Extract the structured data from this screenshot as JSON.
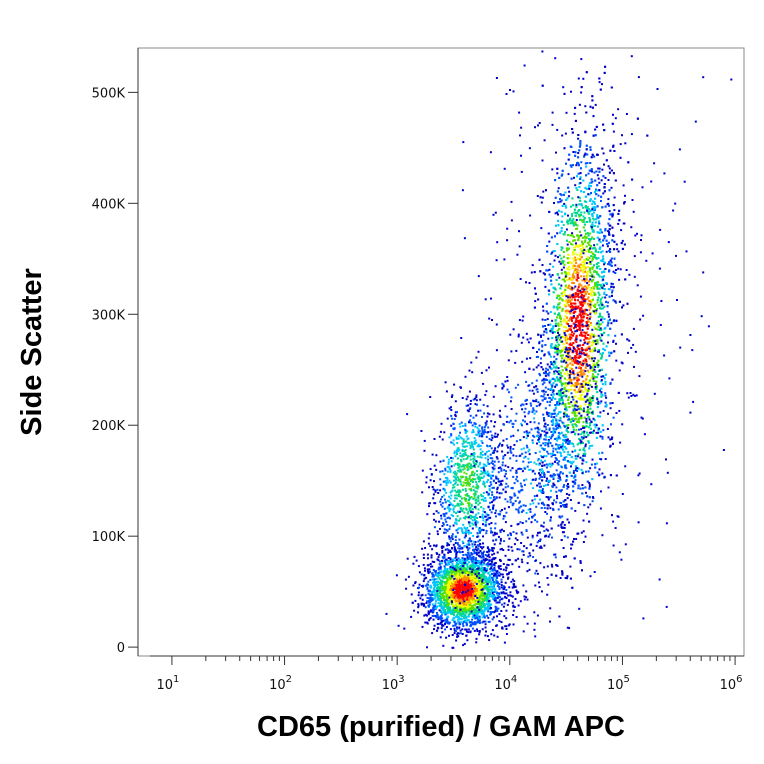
{
  "chart_data": {
    "type": "scatter",
    "title": "",
    "xlabel": "CD65 (purified) / GAM APC",
    "ylabel": "Side Scatter",
    "x_scale": "log",
    "xlim": [
      5,
      1200000
    ],
    "ylim": [
      -8000,
      540000
    ],
    "x_ticks": [
      {
        "value": 10,
        "base": "10",
        "exp": "1"
      },
      {
        "value": 100,
        "base": "10",
        "exp": "2"
      },
      {
        "value": 1000,
        "base": "10",
        "exp": "3"
      },
      {
        "value": 10000,
        "base": "10",
        "exp": "4"
      },
      {
        "value": 100000,
        "base": "10",
        "exp": "5"
      },
      {
        "value": 1000000,
        "base": "10",
        "exp": "6"
      }
    ],
    "y_ticks": [
      {
        "value": 0,
        "label": "0"
      },
      {
        "value": 100000,
        "label": "100K"
      },
      {
        "value": 200000,
        "label": "200K"
      },
      {
        "value": 300000,
        "label": "300K"
      },
      {
        "value": 400000,
        "label": "400K"
      },
      {
        "value": 500000,
        "label": "500K"
      }
    ],
    "grid": false,
    "color_scale": "density (blue-cyan-green-yellow-red)",
    "populations": [
      {
        "x_center": 3800,
        "y_center": 52000,
        "density_peak": "red"
      },
      {
        "x_center": 4500,
        "y_center": 150000,
        "density_peak": "green"
      },
      {
        "x_center": 40000,
        "y_center": 285000,
        "density_peak": "red"
      }
    ],
    "colors": [
      "#0000c8",
      "#0050ff",
      "#00c8ff",
      "#00d890",
      "#58e000",
      "#f0ff00",
      "#ff8c00",
      "#ff0000"
    ]
  }
}
